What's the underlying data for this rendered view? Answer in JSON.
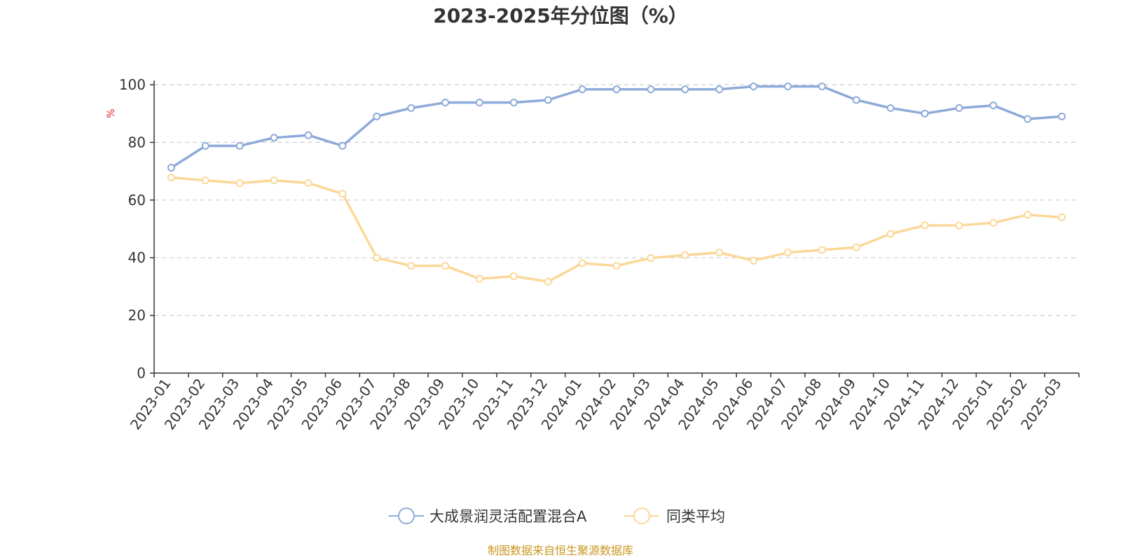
{
  "chart_data": {
    "type": "line",
    "title": "2023-2025年分位图（%）",
    "ylabel": "%",
    "ylim": [
      0,
      100
    ],
    "yticks": [
      0,
      20,
      40,
      60,
      80,
      100
    ],
    "grid": true,
    "legend_position": "bottom",
    "categories": [
      "2023-01",
      "2023-02",
      "2023-03",
      "2023-04",
      "2023-05",
      "2023-06",
      "2023-07",
      "2023-08",
      "2023-09",
      "2023-10",
      "2023-11",
      "2023-12",
      "2024-01",
      "2024-02",
      "2024-03",
      "2024-04",
      "2024-05",
      "2024-06",
      "2024-07",
      "2024-08",
      "2024-09",
      "2024-10",
      "2024-11",
      "2024-12",
      "2025-01",
      "2025-02",
      "2025-03"
    ],
    "series": [
      {
        "name": "大成景润灵活配置混合A",
        "color": "#8eaad9",
        "values": [
          71.2,
          78.8,
          78.8,
          81.6,
          82.5,
          78.8,
          89.0,
          91.9,
          93.8,
          93.8,
          93.8,
          94.7,
          98.4,
          98.4,
          98.4,
          98.4,
          98.4,
          99.4,
          99.4,
          99.4,
          94.7,
          91.9,
          90.0,
          91.9,
          92.8,
          88.1,
          89.0
        ]
      },
      {
        "name": "同类平均",
        "color": "#fbd898",
        "values": [
          67.8,
          66.8,
          65.9,
          66.8,
          65.9,
          62.2,
          40.0,
          37.2,
          37.2,
          32.7,
          33.6,
          31.7,
          38.1,
          37.2,
          39.9,
          40.9,
          41.8,
          39.0,
          41.8,
          42.7,
          43.6,
          48.3,
          51.2,
          51.2,
          52.1,
          54.9,
          54.0
        ]
      }
    ]
  },
  "source_text": "制图数据来自恒生聚源数据库",
  "source_color": "#c8961e",
  "ylabel_color": "#e02020",
  "axis_color": "#333333",
  "grid_color": "#cccccc"
}
